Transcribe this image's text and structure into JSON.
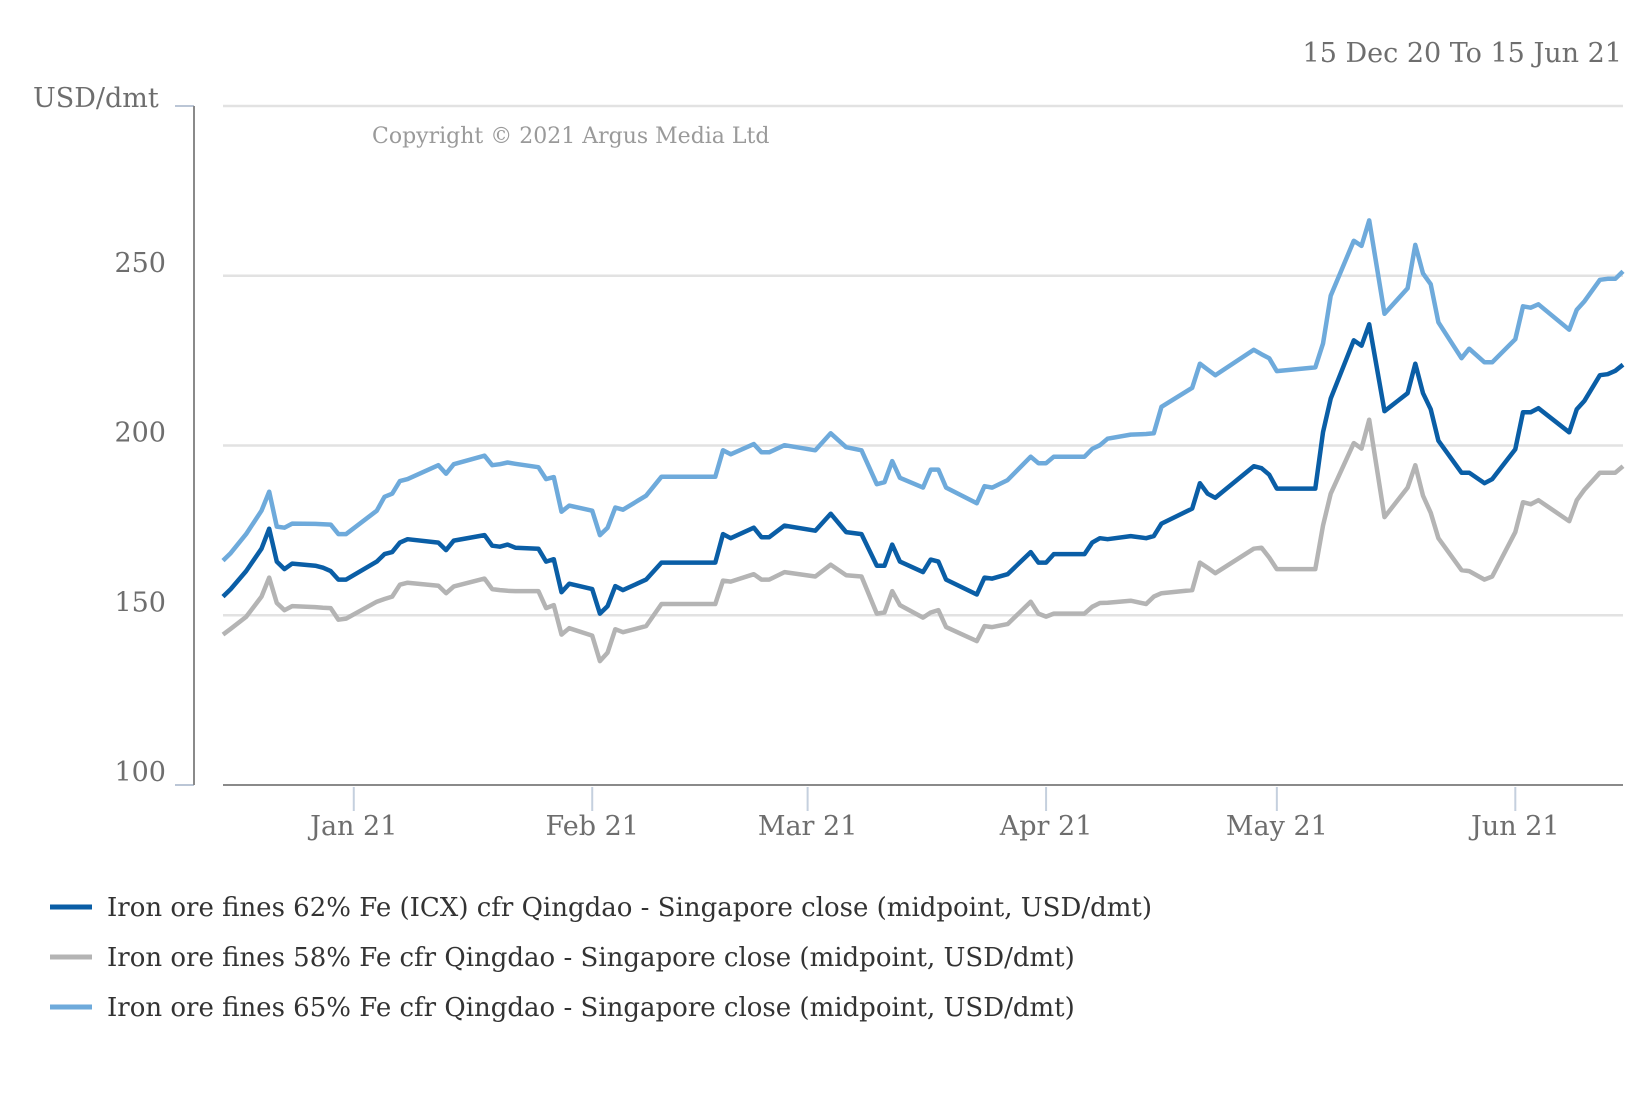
{
  "chart_data": {
    "type": "line",
    "date_range": "15 Dec 20 To 15 Jun 21",
    "ylabel": "USD/dmt",
    "copyright": "Copyright © 2021 Argus Media Ltd",
    "ylim": [
      100,
      300
    ],
    "yticks": [
      100,
      150,
      200,
      250
    ],
    "gridlines": [
      150,
      200,
      250,
      300
    ],
    "xlim": [
      "2020-12-15",
      "2021-06-15"
    ],
    "xticks": [
      {
        "date": "2021-01-01",
        "label": "Jan 21"
      },
      {
        "date": "2021-02-01",
        "label": "Feb 21"
      },
      {
        "date": "2021-03-01",
        "label": "Mar 21"
      },
      {
        "date": "2021-04-01",
        "label": "Apr 21"
      },
      {
        "date": "2021-05-01",
        "label": "May 21"
      },
      {
        "date": "2021-06-01",
        "label": "Jun 21"
      }
    ],
    "x": [
      "2020-12-15",
      "2020-12-16",
      "2020-12-18",
      "2020-12-20",
      "2020-12-21",
      "2020-12-22",
      "2020-12-23",
      "2020-12-24",
      "2020-12-27",
      "2020-12-28",
      "2020-12-29",
      "2020-12-30",
      "2020-12-31",
      "2021-01-04",
      "2021-01-05",
      "2021-01-06",
      "2021-01-07",
      "2021-01-08",
      "2021-01-12",
      "2021-01-13",
      "2021-01-14",
      "2021-01-18",
      "2021-01-19",
      "2021-01-20",
      "2021-01-21",
      "2021-01-22",
      "2021-01-25",
      "2021-01-26",
      "2021-01-27",
      "2021-01-28",
      "2021-01-29",
      "2021-02-01",
      "2021-02-02",
      "2021-02-03",
      "2021-02-04",
      "2021-02-05",
      "2021-02-08",
      "2021-02-10",
      "2021-02-17",
      "2021-02-18",
      "2021-02-19",
      "2021-02-22",
      "2021-02-23",
      "2021-02-24",
      "2021-02-26",
      "2021-03-02",
      "2021-03-04",
      "2021-03-06",
      "2021-03-08",
      "2021-03-10",
      "2021-03-11",
      "2021-03-12",
      "2021-03-13",
      "2021-03-16",
      "2021-03-17",
      "2021-03-18",
      "2021-03-19",
      "2021-03-23",
      "2021-03-24",
      "2021-03-25",
      "2021-03-27",
      "2021-03-30",
      "2021-03-31",
      "2021-04-01",
      "2021-04-02",
      "2021-04-06",
      "2021-04-07",
      "2021-04-08",
      "2021-04-09",
      "2021-04-12",
      "2021-04-14",
      "2021-04-15",
      "2021-04-16",
      "2021-04-20",
      "2021-04-21",
      "2021-04-22",
      "2021-04-23",
      "2021-04-28",
      "2021-04-29",
      "2021-04-30",
      "2021-05-01",
      "2021-05-06",
      "2021-05-07",
      "2021-05-08",
      "2021-05-11",
      "2021-05-12",
      "2021-05-13",
      "2021-05-15",
      "2021-05-18",
      "2021-05-19",
      "2021-05-20",
      "2021-05-21",
      "2021-05-22",
      "2021-05-25",
      "2021-05-26",
      "2021-05-28",
      "2021-05-29",
      "2021-06-01",
      "2021-06-02",
      "2021-06-03",
      "2021-06-04",
      "2021-06-08",
      "2021-06-09",
      "2021-06-10",
      "2021-06-12",
      "2021-06-13",
      "2021-06-14",
      "2021-06-15"
    ],
    "series": [
      {
        "name": "Iron ore fines 62% Fe (ICX) cfr Qingdao - Singapore close (midpoint, USD/dmt)",
        "color": "#0a5ea6",
        "values": [
          155.5,
          157.7,
          163,
          169.6,
          175.5,
          165.8,
          163.6,
          165.2,
          164.6,
          164,
          163,
          160.5,
          160.5,
          165.8,
          168,
          168.6,
          171.4,
          172.4,
          171.4,
          169.2,
          172,
          173.6,
          170.5,
          170.2,
          170.8,
          169.9,
          169.6,
          165.8,
          166.5,
          156.8,
          159.3,
          157.7,
          150.5,
          152.7,
          158.6,
          157.4,
          160.5,
          165.5,
          165.5,
          173.9,
          172.7,
          175.8,
          173,
          173,
          176.4,
          174.9,
          179.9,
          174.5,
          173.9,
          164.6,
          164.6,
          170.8,
          165.8,
          162.7,
          166.4,
          165.8,
          160.5,
          156.1,
          161.1,
          160.8,
          162.1,
          168.6,
          165.5,
          165.5,
          168,
          168,
          171.4,
          172.7,
          172.4,
          173.3,
          172.7,
          173.3,
          177,
          181.4,
          188.9,
          185.8,
          184.6,
          193.9,
          193.3,
          191.4,
          187.3,
          187.3,
          203.9,
          213.8,
          231,
          229.4,
          235.7,
          210.1,
          215.4,
          224.1,
          215.4,
          210.7,
          201.4,
          192,
          192,
          188.9,
          190.1,
          198.9,
          209.8,
          209.8,
          211,
          203.9,
          210.7,
          213.2,
          220.7,
          221,
          222,
          223.8
        ]
      },
      {
        "name": "Iron ore fines 58% Fe cfr Qingdao - Singapore close (midpoint, USD/dmt)",
        "color": "#b4b4b4",
        "values": [
          144.3,
          146,
          149.5,
          155.5,
          161.1,
          153.6,
          151.5,
          152.7,
          152.4,
          152.2,
          152.1,
          148.7,
          149,
          154,
          154.8,
          155.5,
          159,
          159.6,
          158.7,
          156.5,
          158.5,
          160.8,
          157.7,
          157.4,
          157.2,
          157.1,
          157.1,
          152.1,
          153,
          144.3,
          146.2,
          144,
          136.5,
          139,
          145.9,
          145,
          146.8,
          153.3,
          153.3,
          160.2,
          159.9,
          162.1,
          160.5,
          160.5,
          162.7,
          161.4,
          164.9,
          161.8,
          161.4,
          150.5,
          150.8,
          157.1,
          153,
          149.3,
          150.8,
          151.5,
          146.5,
          142.4,
          146.8,
          146.5,
          147.4,
          154,
          150.5,
          149.6,
          150.5,
          150.5,
          152.5,
          153.6,
          153.7,
          154.3,
          153.3,
          155.5,
          156.5,
          157.4,
          165.5,
          164,
          162.4,
          169.6,
          169.9,
          167,
          163.6,
          163.6,
          176.4,
          185.8,
          200.7,
          199.1,
          207.6,
          178.9,
          187.6,
          194.2,
          185.2,
          180.2,
          172.7,
          163.3,
          163,
          160.5,
          161.4,
          174.5,
          183.3,
          182.7,
          183.9,
          177.7,
          183.9,
          187,
          192,
          192,
          192,
          193.9
        ]
      },
      {
        "name": "Iron ore fines 65% Fe cfr Qingdao - Singapore close (midpoint, USD/dmt)",
        "color": "#6eaadb",
        "values": [
          166.1,
          168.3,
          173.9,
          180.8,
          186.4,
          176.1,
          175.8,
          177,
          176.9,
          176.8,
          176.7,
          173.9,
          173.9,
          180.8,
          184.9,
          185.8,
          189.5,
          190.1,
          194.2,
          191.7,
          194.5,
          197,
          194.2,
          194.5,
          195,
          194.6,
          193.6,
          190.1,
          190.7,
          180.5,
          182.3,
          180.8,
          173.6,
          175.8,
          181.7,
          181.1,
          185.2,
          190.8,
          190.8,
          198.6,
          197.4,
          200.4,
          198,
          198,
          200.1,
          198.6,
          203.6,
          199.5,
          198.6,
          188.6,
          189.2,
          195.4,
          190.5,
          187.6,
          192.9,
          192.9,
          187.6,
          183,
          188,
          187.6,
          189.8,
          196.7,
          194.8,
          194.8,
          196.7,
          196.7,
          199,
          200.1,
          202,
          203.2,
          203.4,
          203.6,
          211.4,
          217,
          224.1,
          222.4,
          220.7,
          228.2,
          226.9,
          225.7,
          221.9,
          223,
          230,
          244.1,
          260.3,
          258.8,
          266.3,
          238.8,
          246.3,
          259.1,
          250.7,
          247.5,
          236.3,
          225.7,
          228.5,
          224.5,
          224.5,
          231.3,
          241,
          240.6,
          241.6,
          234.1,
          240,
          242.5,
          248.8,
          249.1,
          249.1,
          251.3
        ]
      }
    ]
  }
}
